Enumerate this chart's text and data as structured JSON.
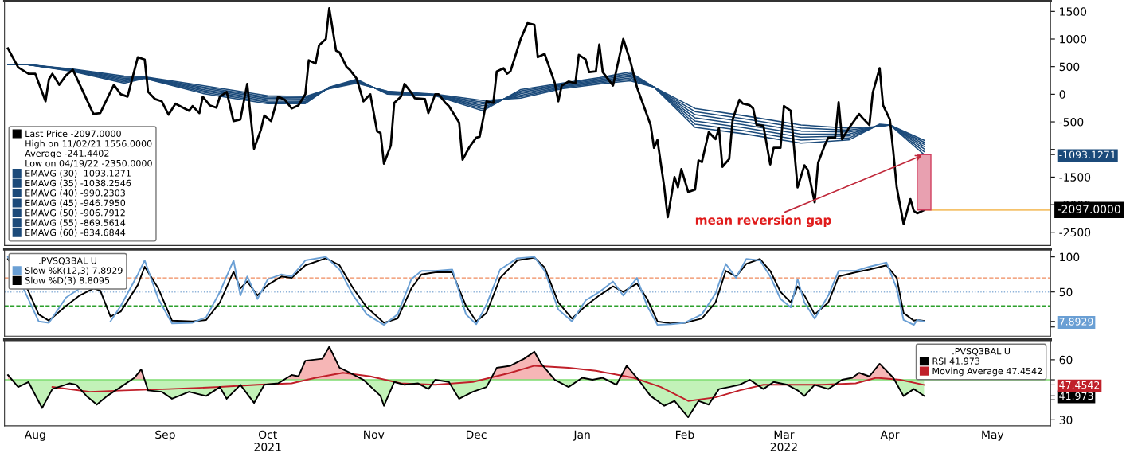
{
  "chart_data": [
    {
      "type": "line",
      "legend": "bottom left",
      "tick_labels": "y",
      "xlim": [
        "2021-07-30",
        "2022-06-01"
      ],
      "ylim": [
        -2740,
        1690
      ],
      "yticks": [
        -2500,
        -2000,
        -1500,
        {
          "value": -1000,
          "label": null
        },
        {
          "value": -1093.1271,
          "label": "-1093.1271"
        },
        -500,
        0,
        500,
        1000,
        1500
      ],
      "series": [
        {
          "name": "Last Price -2097.0000",
          "color": "#000000",
          "x": [
            "2021-07-31",
            "2021-08-03",
            "2021-08-06",
            "2021-08-08",
            "2021-08-11",
            "2021-08-12",
            "2021-08-13",
            "2021-08-15",
            "2021-08-17",
            "2021-08-19",
            "2021-08-25",
            "2021-08-27",
            "2021-08-28",
            "2021-08-31",
            "2021-09-02",
            "2021-09-04",
            "2021-09-07",
            "2021-09-09",
            "2021-09-10",
            "2021-09-12",
            "2021-09-14",
            "2021-09-16",
            "2021-09-18",
            "2021-09-22",
            "2021-09-23",
            "2021-09-25",
            "2021-09-26",
            "2021-09-28",
            "2021-09-30",
            "2021-10-01",
            "2021-10-03",
            "2021-10-05",
            "2021-10-07",
            "2021-10-09",
            "2021-10-11",
            "2021-10-13",
            "2021-10-14",
            "2021-10-16",
            "2021-10-18",
            "2021-10-20",
            "2021-10-22",
            "2021-10-24",
            "2021-10-26",
            "2021-10-27",
            "2021-10-29",
            "2021-10-30",
            "2021-11-01",
            "2021-11-02",
            "2021-11-04",
            "2021-11-05",
            "2021-11-07",
            "2021-11-08",
            "2021-11-10",
            "2021-11-12",
            "2021-11-14",
            "2021-11-16",
            "2021-11-17",
            "2021-11-18",
            "2021-11-20",
            "2021-11-21",
            "2021-11-23",
            "2021-11-24",
            "2021-11-26",
            "2021-11-27",
            "2021-11-30",
            "2021-12-01",
            "2021-12-03",
            "2021-12-04",
            "2021-12-06",
            "2021-12-07",
            "2021-12-10",
            "2021-12-11",
            "2021-12-13",
            "2021-12-15",
            "2021-12-16",
            "2021-12-18",
            "2021-12-20",
            "2021-12-21",
            "2021-12-23",
            "2021-12-24",
            "2021-12-25",
            "2021-12-28",
            "2021-12-30",
            "2022-01-01",
            "2022-01-02",
            "2022-01-04",
            "2022-01-07",
            "2022-01-08",
            "2022-01-09",
            "2022-01-11",
            "2022-01-13",
            "2022-01-14",
            "2022-01-16",
            "2022-01-17",
            "2022-01-19",
            "2022-01-20",
            "2022-01-21",
            "2022-01-24",
            "2022-01-27",
            "2022-01-29",
            "2022-01-31",
            "2022-02-04",
            "2022-02-05",
            "2022-02-06",
            "2022-02-08",
            "2022-02-09",
            "2022-02-11",
            "2022-02-12",
            "2022-02-13",
            "2022-02-15",
            "2022-02-17",
            "2022-02-18",
            "2022-02-19",
            "2022-02-21",
            "2022-02-23",
            "2022-02-24",
            "2022-02-25",
            "2022-02-27",
            "2022-02-28",
            "2022-03-02",
            "2022-03-03",
            "2022-03-05",
            "2022-03-06",
            "2022-03-07",
            "2022-03-09",
            "2022-03-11",
            "2022-03-12",
            "2022-03-14",
            "2022-03-15",
            "2022-03-17",
            "2022-03-19",
            "2022-03-21",
            "2022-03-22",
            "2022-03-24",
            "2022-03-25",
            "2022-03-27",
            "2022-03-28",
            "2022-03-30",
            "2022-03-31",
            "2022-04-01",
            "2022-04-03",
            "2022-04-06",
            "2022-04-07",
            "2022-04-09",
            "2022-04-10",
            "2022-04-12",
            "2022-04-13",
            "2022-04-15",
            "2022-04-16",
            "2022-04-17",
            "2022-04-19",
            "2022-04-21",
            "2022-04-22",
            "2022-04-23",
            "2022-04-25"
          ],
          "values": [
            829,
            486,
            371,
            371,
            -129,
            271,
            371,
            171,
            343,
            443,
            -357,
            -343,
            -214,
            171,
            0,
            -43,
            671,
            629,
            43,
            -86,
            -129,
            -371,
            -171,
            -300,
            -214,
            -343,
            -43,
            -200,
            -243,
            -43,
            43,
            -486,
            -457,
            186,
            -986,
            -643,
            -386,
            -486,
            -43,
            -100,
            -257,
            -200,
            0,
            614,
            557,
            886,
            1000,
            1556,
            786,
            757,
            500,
            443,
            286,
            -129,
            0,
            -671,
            -700,
            -1257,
            -929,
            -157,
            -43,
            186,
            29,
            -71,
            -86,
            -343,
            0,
            0,
            -157,
            -214,
            -514,
            -1186,
            -957,
            -786,
            -771,
            -129,
            -157,
            414,
            471,
            371,
            414,
            1000,
            1286,
            1257,
            671,
            729,
            200,
            -129,
            157,
            229,
            200,
            714,
            629,
            400,
            414,
            900,
            400,
            157,
            1000,
            614,
            129,
            -557,
            -971,
            -829,
            -1686,
            -2229,
            -1500,
            -1686,
            -1357,
            -1771,
            -1729,
            -1200,
            -1229,
            -686,
            -814,
            -614,
            -1314,
            -1171,
            -457,
            -100,
            -171,
            -200,
            -257,
            -557,
            -571,
            -1271,
            -971,
            -971,
            -214,
            -300,
            -1686,
            -1286,
            -1371,
            -1957,
            -1243,
            -914,
            -786,
            -786,
            -143,
            -814,
            -614,
            -357,
            -429,
            -557,
            29,
            471,
            -200,
            -457,
            -1043,
            -1686,
            -2350,
            -1900,
            -2114,
            -2157,
            -2097
          ]
        },
        {
          "name": "EMAVG (30) -1093.1271",
          "color": "#1b4a7a",
          "x": [
            "2021-07-31",
            "2021-08-05",
            "2021-08-19",
            "2021-09-03",
            "2021-09-09",
            "2021-09-26",
            "2021-10-15",
            "2021-10-26",
            "2021-11-02",
            "2021-11-10",
            "2021-11-19",
            "2021-12-03",
            "2021-12-17",
            "2021-12-28",
            "2022-01-09",
            "2022-01-20",
            "2022-01-29",
            "2022-02-05",
            "2022-02-17",
            "2022-03-03",
            "2022-03-20",
            "2022-04-03",
            "2022-04-12",
            "2022-04-15",
            "2022-04-25"
          ],
          "values": [
            543,
            543,
            414,
            200,
            286,
            14,
            -171,
            -171,
            129,
            271,
            0,
            -29,
            -300,
            86,
            200,
            300,
            400,
            129,
            -600,
            -714,
            -886,
            -829,
            -543,
            -557,
            -1093.1271
          ]
        },
        {
          "name": "EMAVG (35) -1038.2546",
          "color": "#1b4a7a",
          "x": [
            "2021-07-31",
            "2021-08-05",
            "2021-08-19",
            "2021-09-03",
            "2021-09-09",
            "2021-09-26",
            "2021-10-15",
            "2021-10-26",
            "2021-11-02",
            "2021-11-10",
            "2021-11-19",
            "2021-12-03",
            "2021-12-17",
            "2021-12-28",
            "2022-01-09",
            "2022-01-20",
            "2022-01-29",
            "2022-02-05",
            "2022-02-17",
            "2022-03-03",
            "2022-03-20",
            "2022-04-03",
            "2022-04-12",
            "2022-04-15",
            "2022-04-25"
          ],
          "values": [
            543,
            543,
            421,
            222,
            291,
            38,
            -147,
            -150,
            124,
            259,
            10,
            -24,
            -269,
            60,
            183,
            281,
            374,
            129,
            -543,
            -659,
            -831,
            -793,
            -550,
            -557,
            -1038.2546
          ]
        },
        {
          "name": "EMAVG (40) -990.2303",
          "color": "#1b4a7a",
          "x": [
            "2021-07-31",
            "2021-08-05",
            "2021-08-19",
            "2021-09-03",
            "2021-09-09",
            "2021-09-26",
            "2021-10-15",
            "2021-10-26",
            "2021-11-02",
            "2021-11-10",
            "2021-11-19",
            "2021-12-03",
            "2021-12-17",
            "2021-12-28",
            "2022-01-09",
            "2022-01-20",
            "2022-01-29",
            "2022-02-05",
            "2022-02-17",
            "2022-03-03",
            "2022-03-20",
            "2022-04-03",
            "2022-04-12",
            "2022-04-15",
            "2022-04-25"
          ],
          "values": [
            543,
            543,
            428,
            243,
            295,
            62,
            -124,
            -128,
            119,
            247,
            19,
            -19,
            -238,
            34,
            167,
            262,
            348,
            129,
            -486,
            -605,
            -776,
            -757,
            -557,
            -557,
            -990.2303
          ]
        },
        {
          "name": "EMAVG (45) -946.7950",
          "color": "#1b4a7a",
          "x": [
            "2021-07-31",
            "2021-08-05",
            "2021-08-19",
            "2021-09-03",
            "2021-09-09",
            "2021-09-26",
            "2021-10-15",
            "2021-10-26",
            "2021-11-02",
            "2021-11-10",
            "2021-11-19",
            "2021-12-03",
            "2021-12-17",
            "2021-12-28",
            "2022-01-09",
            "2022-01-20",
            "2022-01-29",
            "2022-02-05",
            "2022-02-17",
            "2022-03-03",
            "2022-03-20",
            "2022-04-03",
            "2022-04-12",
            "2022-04-15",
            "2022-04-25"
          ],
          "values": [
            543,
            543,
            436,
            265,
            300,
            86,
            -100,
            -107,
            115,
            236,
            29,
            -15,
            -207,
            8,
            150,
            243,
            322,
            129,
            -429,
            -550,
            -722,
            -722,
            -565,
            -557,
            -946.795
          ]
        },
        {
          "name": "EMAVG (50) -906.7912",
          "color": "#1b4a7a",
          "x": [
            "2021-07-31",
            "2021-08-05",
            "2021-08-19",
            "2021-09-03",
            "2021-09-09",
            "2021-09-26",
            "2021-10-15",
            "2021-10-26",
            "2021-11-02",
            "2021-11-10",
            "2021-11-19",
            "2021-12-03",
            "2021-12-17",
            "2021-12-28",
            "2022-01-09",
            "2022-01-20",
            "2022-01-29",
            "2022-02-05",
            "2022-02-17",
            "2022-03-03",
            "2022-03-20",
            "2022-04-03",
            "2022-04-12",
            "2022-04-15",
            "2022-04-25"
          ],
          "values": [
            543,
            543,
            443,
            286,
            305,
            109,
            -76,
            -86,
            110,
            224,
            38,
            -10,
            -176,
            -19,
            133,
            224,
            295,
            129,
            -371,
            -495,
            -667,
            -686,
            -572,
            -557,
            -906.7912
          ]
        },
        {
          "name": "EMAVG (55) -869.5614",
          "color": "#1b4a7a",
          "x": [
            "2021-07-31",
            "2021-08-05",
            "2021-08-19",
            "2021-09-03",
            "2021-09-09",
            "2021-09-26",
            "2021-10-15",
            "2021-10-26",
            "2021-11-02",
            "2021-11-10",
            "2021-11-19",
            "2021-12-03",
            "2021-12-17",
            "2021-12-28",
            "2022-01-09",
            "2022-01-20",
            "2022-01-29",
            "2022-02-05",
            "2022-02-17",
            "2022-03-03",
            "2022-03-20",
            "2022-04-03",
            "2022-04-12",
            "2022-04-15",
            "2022-04-25"
          ],
          "values": [
            543,
            543,
            450,
            308,
            309,
            133,
            -53,
            -64,
            105,
            212,
            48,
            -5,
            -145,
            -45,
            117,
            205,
            269,
            129,
            -314,
            -441,
            -612,
            -650,
            -579,
            -557,
            -869.5614
          ]
        },
        {
          "name": "EMAVG (60) -834.6844",
          "color": "#1b4a7a",
          "x": [
            "2021-07-31",
            "2021-08-05",
            "2021-08-19",
            "2021-09-03",
            "2021-09-09",
            "2021-09-26",
            "2021-10-15",
            "2021-10-26",
            "2021-11-02",
            "2021-11-10",
            "2021-11-19",
            "2021-12-03",
            "2021-12-17",
            "2021-12-28",
            "2022-01-09",
            "2022-01-20",
            "2022-01-29",
            "2022-02-05",
            "2022-02-17",
            "2022-03-03",
            "2022-03-20",
            "2022-04-03",
            "2022-04-12",
            "2022-04-15",
            "2022-04-25"
          ],
          "values": [
            543,
            543,
            457,
            329,
            314,
            157,
            -29,
            -43,
            100,
            200,
            57,
            0,
            -114,
            -71,
            100,
            186,
            243,
            129,
            -257,
            -386,
            -557,
            -614,
            -586,
            -557,
            -834.6844
          ]
        },
        {
          "type": "bar",
          "color": "#e8a0b0",
          "x": [
            "2022-04-25"
          ],
          "base": [
            -2097
          ],
          "values": [
            1003.1271
          ]
        }
      ],
      "ref_lines": [
        {
          "axis": "y",
          "value": -2097,
          "label": "-2097.0000",
          "color": "#f5c26b"
        }
      ],
      "annotations": [
        "High on 11/02/21 1556.0000",
        "Average -241.4402",
        "Low on 04/19/22 -2350.0000",
        {
          "text": "mean reversion gap",
          "x": "2022-04-25",
          "y": -1093.1271
        }
      ]
    },
    {
      "type": "line",
      "legend": "top left",
      "tick_labels": "y",
      "legend_title": ".PVSQ3BAL U",
      "xlim": [
        "2021-07-30",
        "2022-06-01"
      ],
      "ylim": [
        -13,
        111
      ],
      "yticks": [
        {
          "value": 0,
          "label": null
        },
        {
          "value": 7.8929,
          "label": "7.8929"
        },
        50,
        100
      ],
      "x": [
        "2021-07-31",
        "2021-08-05",
        "2021-08-09",
        "2021-08-12",
        "2021-08-17",
        "2021-08-21",
        "2021-08-25",
        "2021-08-27",
        "2021-08-30",
        "2021-09-02",
        "2021-09-07",
        "2021-09-09",
        "2021-09-13",
        "2021-09-17",
        "2021-09-23",
        "2021-09-27",
        "2021-10-01",
        "2021-10-05",
        "2021-10-07",
        "2021-10-09",
        "2021-10-12",
        "2021-10-15",
        "2021-10-19",
        "2021-10-22",
        "2021-10-26",
        "2021-11-01",
        "2021-11-05",
        "2021-11-09",
        "2021-11-13",
        "2021-11-18",
        "2021-11-22",
        "2021-11-26",
        "2021-11-29",
        "2021-12-03",
        "2021-12-08",
        "2021-12-12",
        "2021-12-15",
        "2021-12-18",
        "2021-12-22",
        "2021-12-27",
        "2022-01-01",
        "2022-01-04",
        "2022-01-08",
        "2022-01-12",
        "2022-01-16",
        "2022-01-20",
        "2022-01-24",
        "2022-01-27",
        "2022-01-31",
        "2022-02-03",
        "2022-02-06",
        "2022-02-10",
        "2022-02-14",
        "2022-02-19",
        "2022-02-23",
        "2022-02-26",
        "2022-03-01",
        "2022-03-04",
        "2022-03-08",
        "2022-03-11",
        "2022-03-14",
        "2022-03-17",
        "2022-03-19",
        "2022-03-21",
        "2022-03-24",
        "2022-03-28",
        "2022-03-31",
        "2022-04-05",
        "2022-04-09",
        "2022-04-14",
        "2022-04-17",
        "2022-04-19",
        "2022-04-22",
        "2022-04-23",
        "2022-04-25"
      ],
      "series": [
        {
          "name": "Slow %K(12,3) 7.8929",
          "color": "#6a9fd4",
          "values": [
            100,
            50,
            8,
            6,
            42,
            55,
            null,
            null,
            8,
            30,
            75,
            95,
            40,
            5,
            6,
            14,
            50,
            95,
            45,
            72,
            40,
            68,
            75,
            72,
            95,
            100,
            82,
            45,
            18,
            3,
            18,
            68,
            80,
            80,
            82,
            18,
            4,
            32,
            82,
            98,
            100,
            80,
            25,
            8,
            38,
            50,
            65,
            45,
            70,
            30,
            3,
            4,
            6,
            18,
            48,
            90,
            70,
            97,
            95,
            72,
            40,
            28,
            68,
            35,
            12,
            45,
            80,
            80,
            86,
            92,
            55,
            10,
            3,
            10,
            7.8929
          ]
        },
        {
          "name": "Slow %D(3) 8.8095",
          "color": "#000000",
          "values": [
            97,
            62,
            18,
            9,
            30,
            45,
            55,
            52,
            15,
            22,
            60,
            86,
            55,
            9,
            8,
            10,
            35,
            79,
            55,
            65,
            45,
            60,
            72,
            70,
            88,
            98,
            88,
            55,
            28,
            6,
            12,
            55,
            75,
            78,
            78,
            30,
            8,
            20,
            70,
            95,
            99,
            85,
            35,
            12,
            30,
            45,
            58,
            50,
            62,
            40,
            8,
            5,
            6,
            12,
            35,
            80,
            72,
            90,
            97,
            80,
            50,
            35,
            58,
            45,
            18,
            35,
            72,
            78,
            82,
            88,
            70,
            20,
            9,
            10,
            8.8095
          ]
        }
      ],
      "ref_lines": [
        {
          "axis": "y",
          "value": 70,
          "color": "#f08a5d",
          "line_style": "dashed"
        },
        {
          "axis": "y",
          "value": 50,
          "color": "#8fb3d9",
          "line_style": "dotted"
        },
        {
          "axis": "y",
          "value": 30,
          "color": "#2ca02c",
          "line_style": "dashed"
        }
      ]
    },
    {
      "type": "line",
      "legend": "top right",
      "legend_title": ".PVSQ3BAL U",
      "xlim": [
        "2021-07-30",
        "2022-06-01"
      ],
      "ylim": [
        27,
        70
      ],
      "yticks": [
        30,
        {
          "value": 40,
          "label": null
        },
        {
          "value": 41.973,
          "label": "41.973"
        },
        {
          "value": 47.4542,
          "label": "47.4542"
        },
        {
          "value": 50,
          "label": null
        },
        60
      ],
      "xticks": [
        {
          "value": "2021-08-08",
          "label": "Aug"
        },
        {
          "value": "2021-09-15",
          "label": "Sep"
        },
        {
          "value": "2021-10-15",
          "label": "Oct\n2021"
        },
        {
          "value": "2021-11-15",
          "label": "Nov"
        },
        {
          "value": "2021-12-15",
          "label": "Dec"
        },
        {
          "value": "2022-01-15",
          "label": "Jan"
        },
        {
          "value": "2022-02-14",
          "label": "Feb"
        },
        {
          "value": "2022-03-15",
          "label": "Mar\n2022"
        },
        {
          "value": "2022-04-15",
          "label": "Apr"
        },
        {
          "value": "2022-05-15",
          "label": "May"
        }
      ],
      "series": [
        {
          "name": "RSI 41.973",
          "type": "line",
          "color": "#000000",
          "x": [
            "2021-07-31",
            "2021-08-03",
            "2021-08-06",
            "2021-08-10",
            "2021-08-13",
            "2021-08-18",
            "2021-08-20",
            "2021-08-23",
            "2021-08-26",
            "2021-08-29",
            "2021-09-02",
            "2021-09-06",
            "2021-09-08",
            "2021-09-10",
            "2021-09-14",
            "2021-09-17",
            "2021-09-22",
            "2021-09-27",
            "2021-10-01",
            "2021-10-03",
            "2021-10-07",
            "2021-10-11",
            "2021-10-14",
            "2021-10-18",
            "2021-10-22",
            "2021-10-24",
            "2021-10-26",
            "2021-10-31",
            "2021-11-02",
            "2021-11-05",
            "2021-11-08",
            "2021-11-12",
            "2021-11-17",
            "2021-11-18",
            "2021-11-21",
            "2021-11-24",
            "2021-11-28",
            "2021-12-01",
            "2021-12-03",
            "2021-12-07",
            "2021-12-10",
            "2021-12-14",
            "2021-12-18",
            "2021-12-21",
            "2021-12-25",
            "2021-12-29",
            "2022-01-01",
            "2022-01-03",
            "2022-01-07",
            "2022-01-11",
            "2022-01-15",
            "2022-01-18",
            "2022-01-21",
            "2022-01-25",
            "2022-01-28",
            "2022-01-31",
            "2022-02-04",
            "2022-02-08",
            "2022-02-11",
            "2022-02-15",
            "2022-02-18",
            "2022-02-21",
            "2022-02-24",
            "2022-02-27",
            "2022-03-02",
            "2022-03-05",
            "2022-03-09",
            "2022-03-12",
            "2022-03-16",
            "2022-03-19",
            "2022-03-21",
            "2022-03-24",
            "2022-03-28",
            "2022-04-01",
            "2022-04-04",
            "2022-04-06",
            "2022-04-09",
            "2022-04-12",
            "2022-04-16",
            "2022-04-19",
            "2022-04-22",
            "2022-04-25"
          ],
          "values": [
            52.4,
            46.4,
            48.9,
            35.9,
            45.4,
            48.2,
            47.5,
            41.9,
            37.6,
            41.9,
            46.4,
            51,
            55.2,
            44.7,
            44,
            40.5,
            44,
            41.9,
            46.4,
            40.5,
            47.5,
            38.4,
            47.5,
            48.2,
            52.4,
            51.7,
            59.5,
            60.5,
            66.5,
            56,
            53.5,
            50,
            41.9,
            37,
            48.9,
            47.5,
            48.2,
            45.4,
            50,
            48.9,
            40.5,
            44,
            46.4,
            56,
            57,
            60.5,
            64,
            58,
            50,
            46.4,
            51,
            50,
            51,
            47.5,
            57,
            51,
            41.9,
            37,
            39.4,
            31.3,
            39.4,
            37.6,
            45.4,
            46.4,
            47.5,
            50,
            45.4,
            48.9,
            47.5,
            44.7,
            41.9,
            47.5,
            45.4,
            50,
            51,
            53.5,
            51.7,
            58,
            51,
            41.9,
            45.4,
            41.973
          ]
        },
        {
          "name": "Moving Average 47.4542",
          "color": "#c0202a",
          "x": [
            "2021-08-13",
            "2021-08-24",
            "2021-09-03",
            "2021-09-16",
            "2021-10-01",
            "2021-10-12",
            "2021-10-22",
            "2021-10-29",
            "2021-11-06",
            "2021-11-14",
            "2021-11-23",
            "2021-12-03",
            "2021-12-14",
            "2021-12-25",
            "2022-01-01",
            "2022-01-11",
            "2022-01-19",
            "2022-01-30",
            "2022-02-07",
            "2022-02-15",
            "2022-02-23",
            "2022-03-02",
            "2022-03-09",
            "2022-03-17",
            "2022-03-26",
            "2022-04-05",
            "2022-04-11",
            "2022-04-18",
            "2022-04-25"
          ],
          "values": [
            46.4,
            44,
            44.7,
            45.4,
            46.4,
            47.5,
            48.2,
            51,
            53.5,
            51.7,
            48.2,
            47.5,
            48.9,
            53.5,
            57,
            56,
            54.5,
            51,
            46.4,
            39.4,
            41.2,
            44.7,
            47.5,
            47.5,
            47.5,
            48.2,
            51,
            50,
            47.4542
          ]
        }
      ],
      "ref_lines": [
        {
          "axis": "y",
          "value": 50,
          "color": "#7ddc6f",
          "line_style": "solid"
        }
      ]
    }
  ]
}
